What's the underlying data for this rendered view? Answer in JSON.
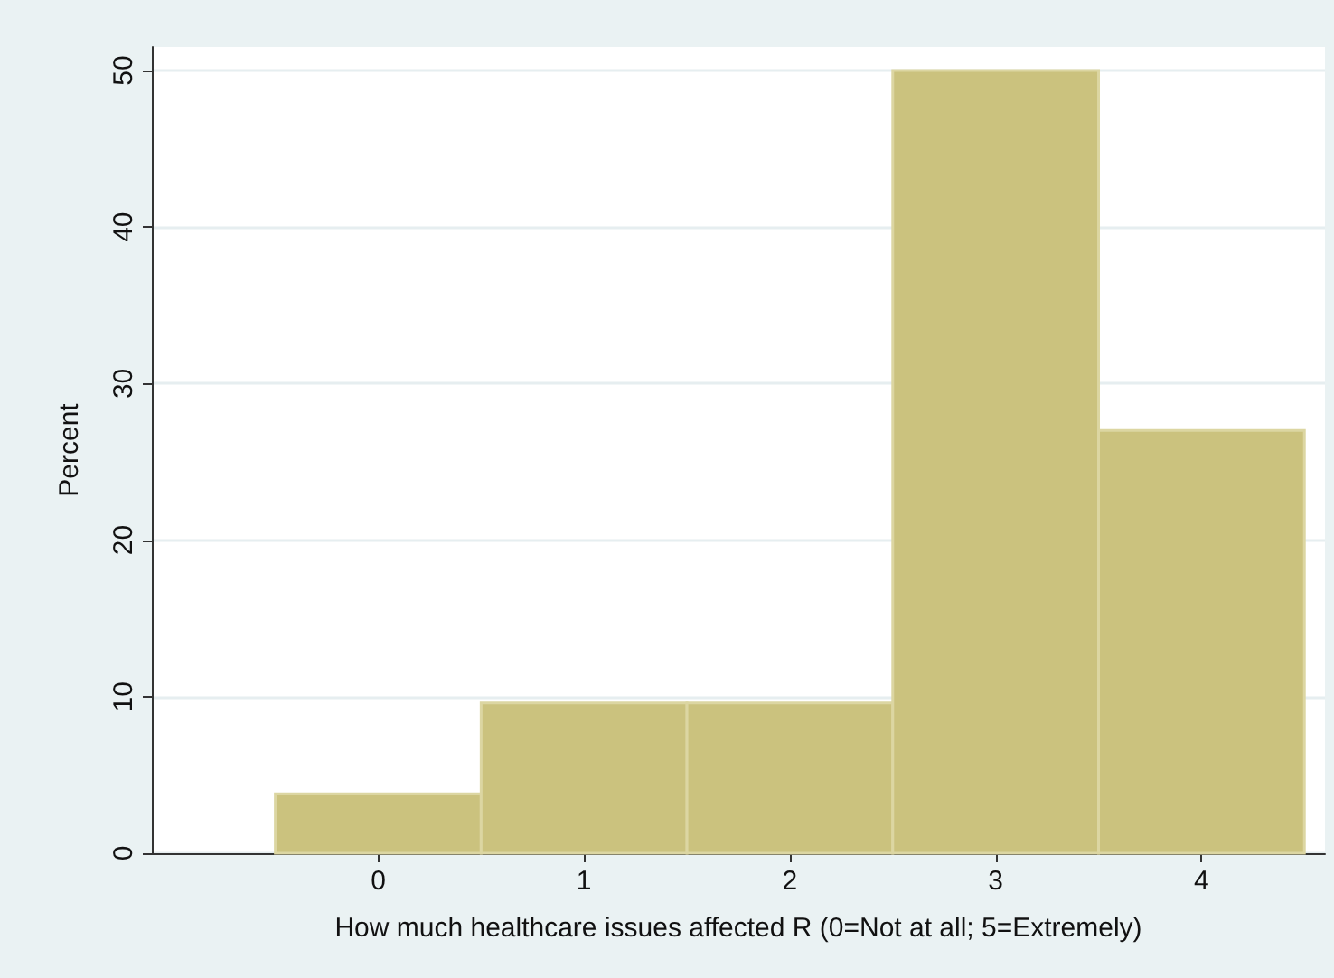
{
  "chart_data": {
    "type": "histogram",
    "xlabel": "How much healthcare issues affected R (0=Not at all; 5=Extremely)",
    "ylabel": "Percent",
    "bins": [
      -0.5,
      0.5,
      1.5,
      2.5,
      3.5,
      4.5
    ],
    "values": [
      3.8,
      9.6,
      9.6,
      50,
      27
    ],
    "color": "#cbc27e",
    "xlim": [
      -1.1,
      4.6
    ],
    "xticks": [
      0,
      1,
      2,
      3,
      4
    ],
    "ylim": [
      0,
      51.5
    ],
    "yticks": [
      0,
      10,
      20,
      30,
      40,
      50
    ],
    "grid": "y"
  }
}
